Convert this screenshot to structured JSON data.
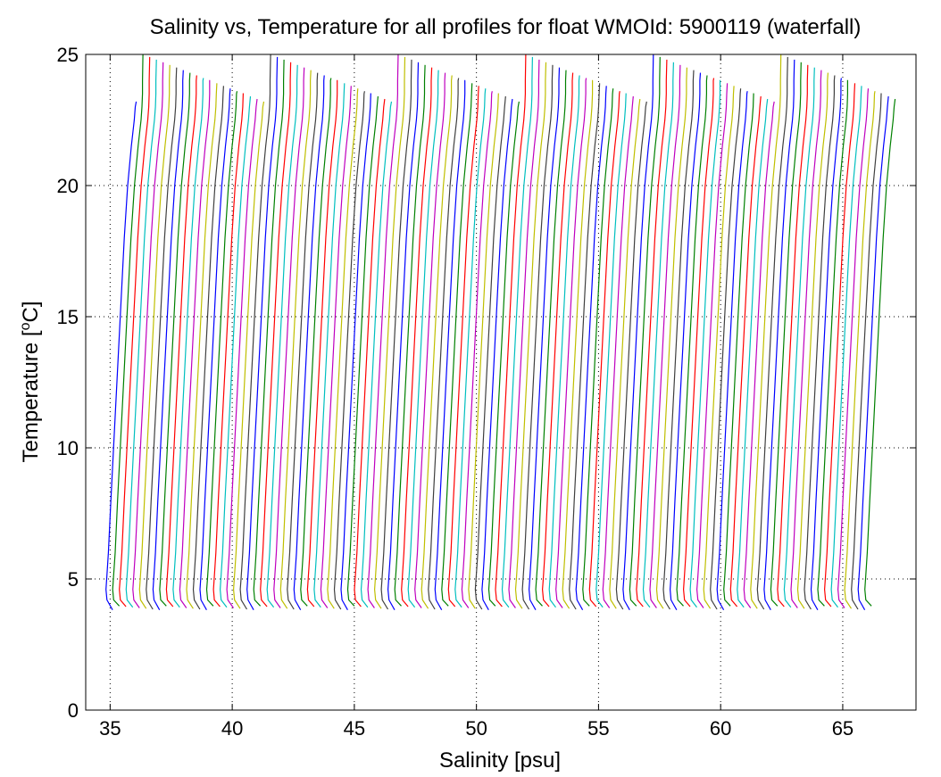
{
  "chart_data": {
    "type": "line",
    "title": "Salinity vs, Temperature for all profiles for float WMOId: 5900119 (waterfall)",
    "xlabel": "Salinity [psu]",
    "ylabel_main": "Temperature [",
    "ylabel_sup": "o",
    "ylabel_end": "C]",
    "xlim": [
      34,
      68
    ],
    "ylim": [
      0,
      25
    ],
    "xticks": [
      35,
      40,
      45,
      50,
      55,
      60,
      65
    ],
    "yticks": [
      0,
      5,
      10,
      15,
      20,
      25
    ],
    "xtick_labels": [
      "35",
      "40",
      "45",
      "50",
      "55",
      "60",
      "65"
    ],
    "ytick_labels": [
      "0",
      "5",
      "10",
      "15",
      "20",
      "25"
    ],
    "grid": true,
    "grid_style": "dotted",
    "series_colors": [
      "#0000ff",
      "#008000",
      "#ff0000",
      "#00bfbf",
      "#bf00bf",
      "#bfbf00",
      "#404040"
    ],
    "profile_count": 114,
    "waterfall_offset_psu": 0.275,
    "base_profile": {
      "temperature": [
        4.0,
        4.2,
        4.6,
        5.0,
        6.0,
        8.0,
        10.0,
        12.0,
        14.0,
        16.0,
        18.0,
        20.0,
        21.5,
        22.5,
        23.0,
        23.5,
        24.0
      ],
      "salinity": [
        35.0,
        34.87,
        34.83,
        34.86,
        34.93,
        35.03,
        35.14,
        35.25,
        35.36,
        35.47,
        35.58,
        35.72,
        35.87,
        35.99,
        36.03,
        36.05,
        36.05
      ]
    }
  }
}
